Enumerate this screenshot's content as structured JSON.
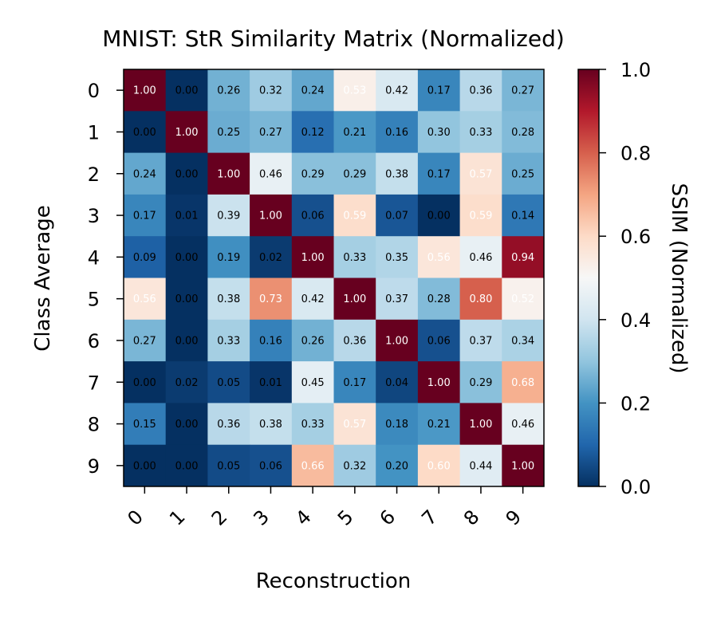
{
  "chart_data": {
    "type": "heatmap",
    "title": "MNIST: StR Similarity Matrix (Normalized)",
    "xlabel": "Reconstruction",
    "ylabel": "Class Average",
    "x_categories": [
      "0",
      "1",
      "2",
      "3",
      "4",
      "5",
      "6",
      "7",
      "8",
      "9"
    ],
    "y_categories": [
      "0",
      "1",
      "2",
      "3",
      "4",
      "5",
      "6",
      "7",
      "8",
      "9"
    ],
    "values": [
      [
        1.0,
        0.0,
        0.26,
        0.32,
        0.24,
        0.53,
        0.42,
        0.17,
        0.36,
        0.27
      ],
      [
        0.0,
        1.0,
        0.25,
        0.27,
        0.12,
        0.21,
        0.16,
        0.3,
        0.33,
        0.28
      ],
      [
        0.24,
        0.0,
        1.0,
        0.46,
        0.29,
        0.29,
        0.38,
        0.17,
        0.57,
        0.25
      ],
      [
        0.17,
        0.01,
        0.39,
        1.0,
        0.06,
        0.59,
        0.07,
        0.0,
        0.59,
        0.14
      ],
      [
        0.09,
        0.0,
        0.19,
        0.02,
        1.0,
        0.33,
        0.35,
        0.56,
        0.46,
        0.94
      ],
      [
        0.56,
        0.0,
        0.38,
        0.73,
        0.42,
        1.0,
        0.37,
        0.28,
        0.8,
        0.52
      ],
      [
        0.27,
        0.0,
        0.33,
        0.16,
        0.26,
        0.36,
        1.0,
        0.06,
        0.37,
        0.34
      ],
      [
        0.0,
        0.02,
        0.05,
        0.01,
        0.45,
        0.17,
        0.04,
        1.0,
        0.29,
        0.68
      ],
      [
        0.15,
        0.0,
        0.36,
        0.38,
        0.33,
        0.57,
        0.18,
        0.21,
        1.0,
        0.46
      ],
      [
        0.0,
        0.0,
        0.05,
        0.06,
        0.66,
        0.32,
        0.2,
        0.6,
        0.44,
        1.0
      ]
    ],
    "value_format": "2 decimals",
    "colormap": "RdBu_r",
    "colorbar": {
      "label": "SSIM (Normalized)",
      "range": [
        0.0,
        1.0
      ],
      "ticks": [
        "0.0",
        "0.2",
        "0.4",
        "0.6",
        "0.8",
        "1.0"
      ]
    },
    "grid": false
  }
}
